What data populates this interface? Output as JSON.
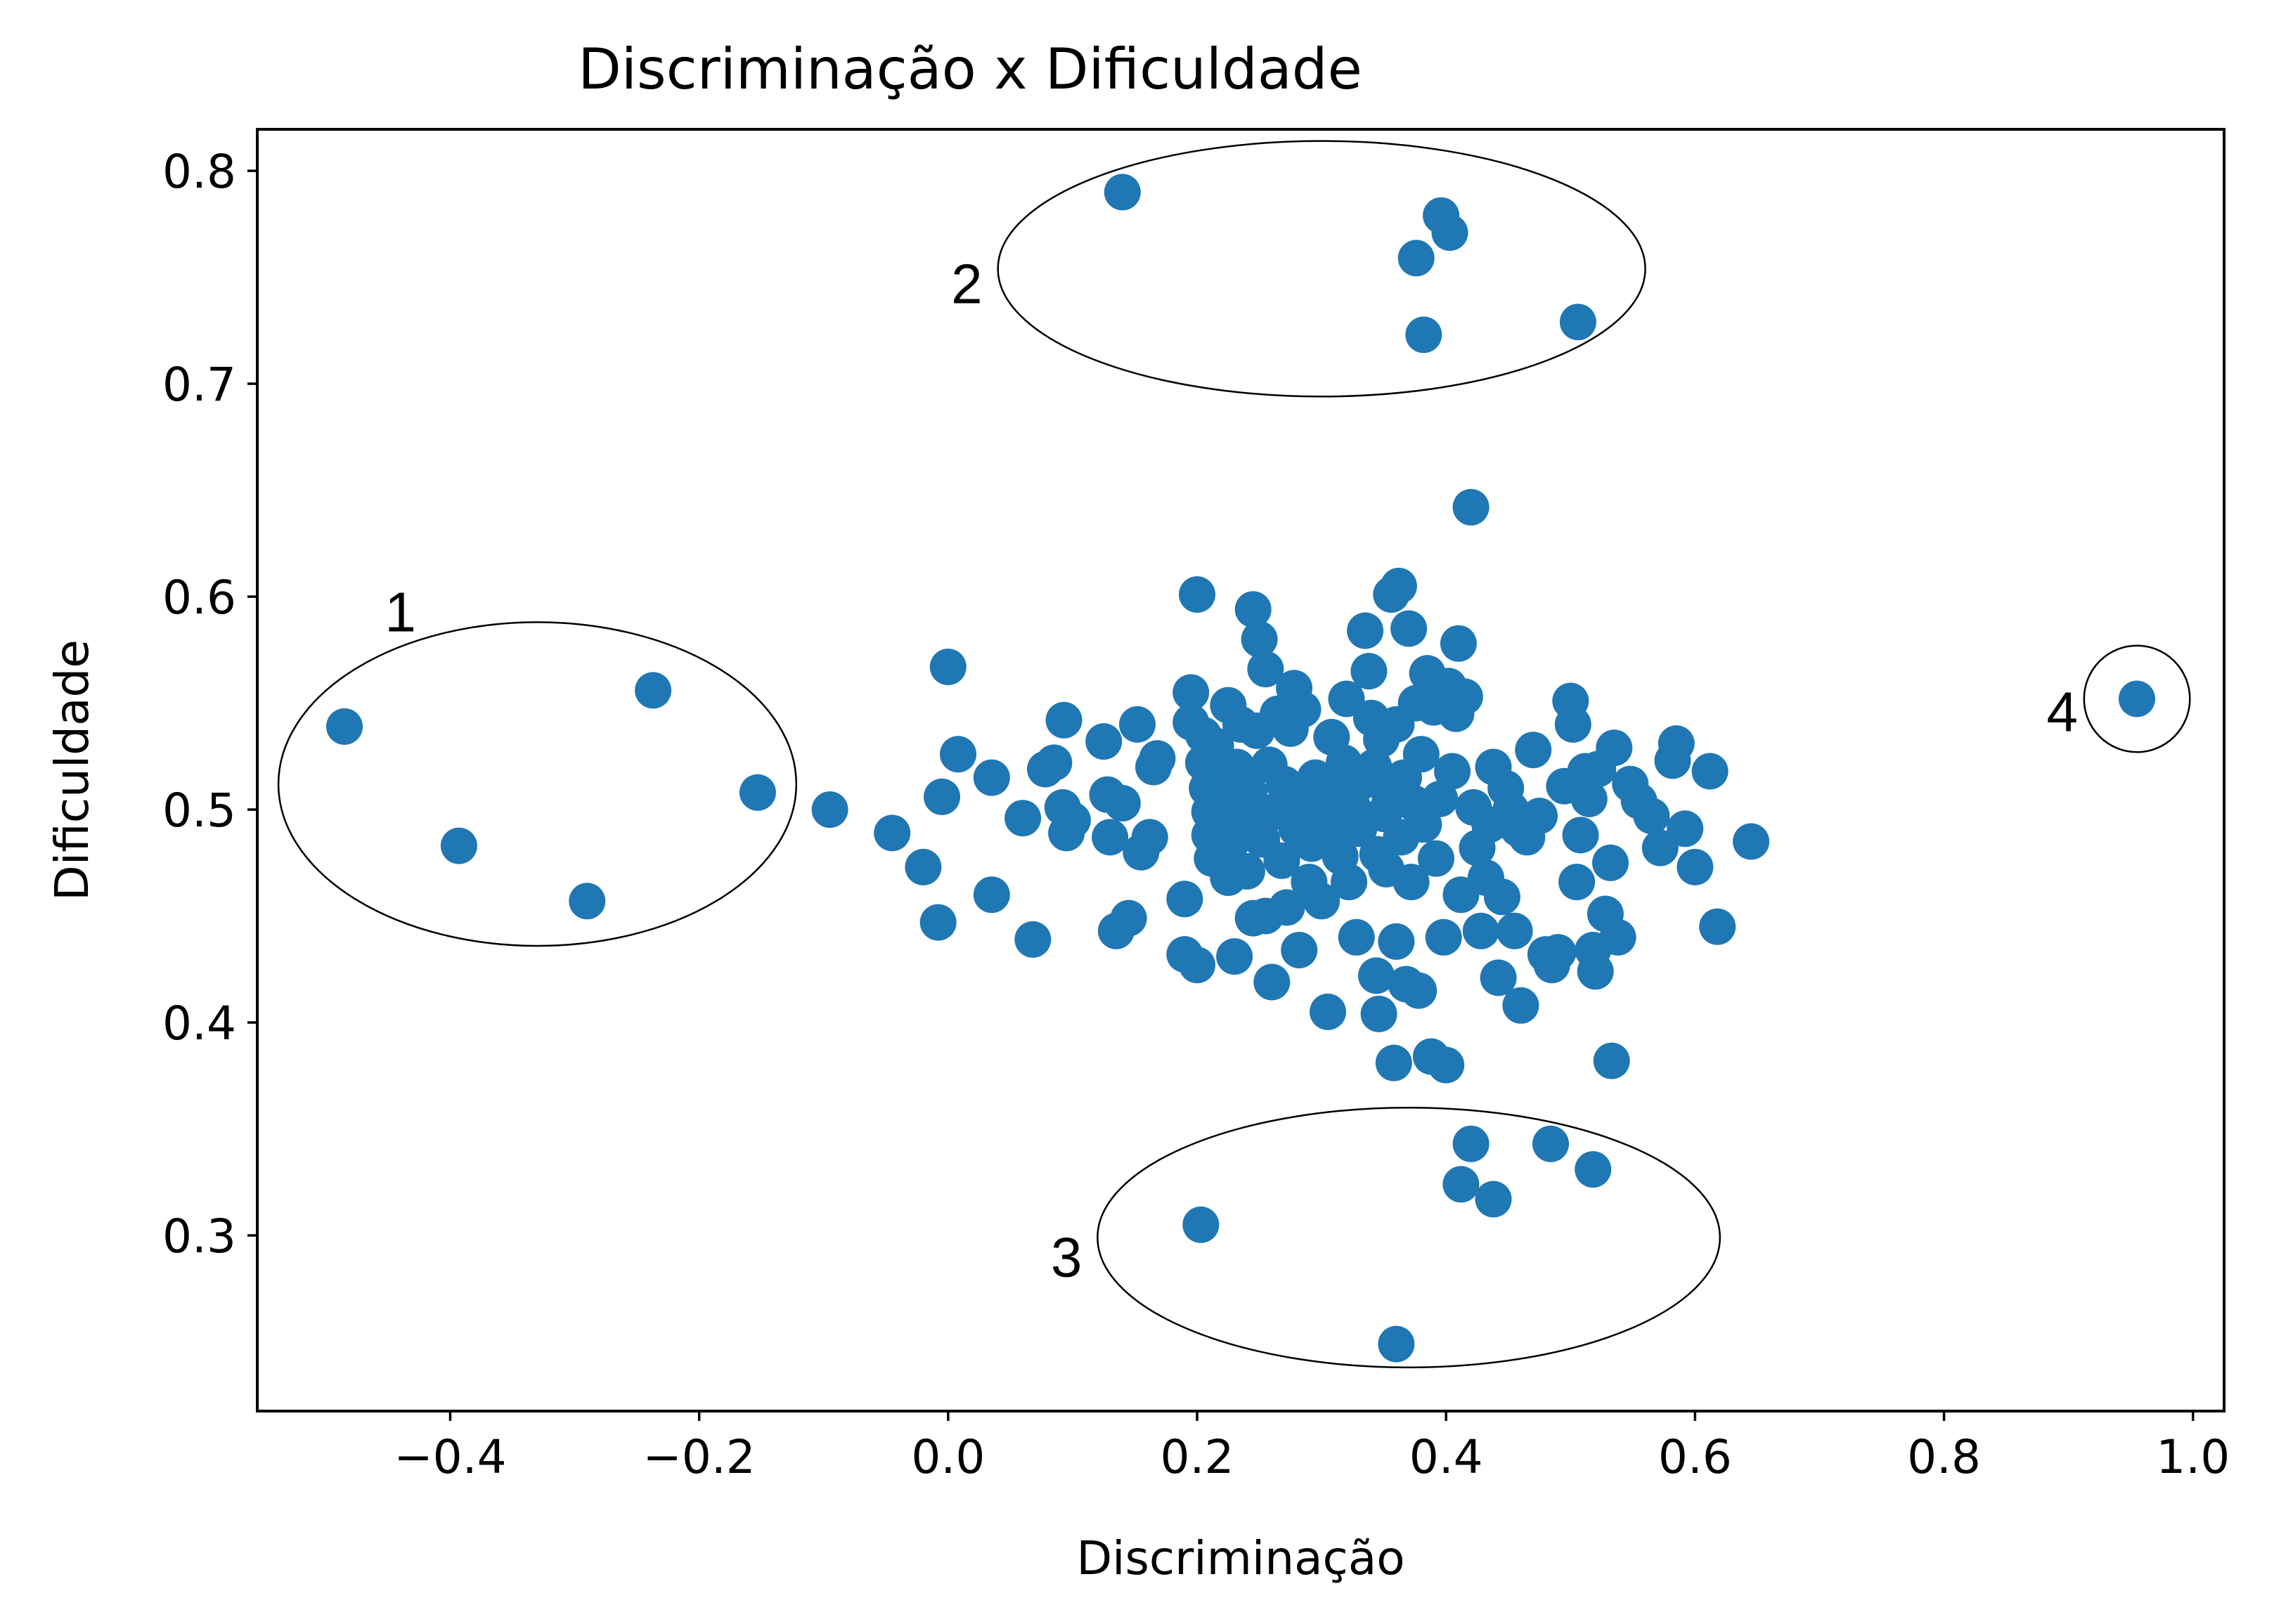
{
  "chart_data": {
    "type": "scatter",
    "title": "Discriminação x Dificuldade",
    "xlabel": "Discriminação",
    "ylabel": "Dificuldade",
    "xlim": [
      -0.555,
      1.025
    ],
    "ylim": [
      0.2175,
      0.8195
    ],
    "x_ticks": [
      -0.4,
      -0.2,
      0.0,
      0.2,
      0.4,
      0.6,
      0.8,
      1.0
    ],
    "x_tick_labels": [
      "−0.4",
      "−0.2",
      "0.0",
      "0.2",
      "0.4",
      "0.6",
      "0.8",
      "1.0"
    ],
    "y_ticks": [
      0.3,
      0.4,
      0.5,
      0.6,
      0.7,
      0.8
    ],
    "y_tick_labels": [
      "0.3",
      "0.4",
      "0.5",
      "0.6",
      "0.7",
      "0.8"
    ],
    "grid": false,
    "marker_color": "#1f77b4",
    "annotations": [
      {
        "label": "1",
        "cx": -0.33,
        "cy": 0.512,
        "rx": 0.208,
        "ry": 0.076,
        "label_x": -0.44,
        "label_y": 0.593
      },
      {
        "label": "2",
        "cx": 0.3,
        "cy": 0.754,
        "rx": 0.26,
        "ry": 0.06,
        "label_x": 0.015,
        "label_y": 0.747
      },
      {
        "label": "3",
        "cx": 0.37,
        "cy": 0.299,
        "rx": 0.25,
        "ry": 0.061,
        "label_x": 0.095,
        "label_y": 0.29
      },
      {
        "label": "4",
        "cx": 0.955,
        "cy": 0.552,
        "rx": 0.0425,
        "ry": 0.025,
        "label_x": 0.895,
        "label_y": 0.546
      }
    ],
    "series": [
      {
        "points": [
          [
            -0.485,
            0.539
          ],
          [
            -0.393,
            0.483
          ],
          [
            -0.29,
            0.457
          ],
          [
            -0.237,
            0.556
          ],
          [
            -0.153,
            0.508
          ],
          [
            -0.095,
            0.5
          ],
          [
            -0.045,
            0.489
          ],
          [
            -0.02,
            0.473
          ],
          [
            -0.008,
            0.447
          ],
          [
            -0.005,
            0.506
          ],
          [
            0.0,
            0.567
          ],
          [
            0.008,
            0.526
          ],
          [
            0.035,
            0.515
          ],
          [
            0.035,
            0.46
          ],
          [
            0.06,
            0.496
          ],
          [
            0.068,
            0.439
          ],
          [
            0.078,
            0.519
          ],
          [
            0.085,
            0.522
          ],
          [
            0.093,
            0.542
          ],
          [
            0.092,
            0.501
          ],
          [
            0.095,
            0.489
          ],
          [
            0.1,
            0.495
          ],
          [
            0.125,
            0.532
          ],
          [
            0.128,
            0.507
          ],
          [
            0.13,
            0.487
          ],
          [
            0.135,
            0.443
          ],
          [
            0.14,
            0.503
          ],
          [
            0.145,
            0.449
          ],
          [
            0.152,
            0.54
          ],
          [
            0.155,
            0.48
          ],
          [
            0.162,
            0.487
          ],
          [
            0.165,
            0.52
          ],
          [
            0.168,
            0.524
          ],
          [
            0.19,
            0.458
          ],
          [
            0.19,
            0.432
          ],
          [
            0.195,
            0.555
          ],
          [
            0.195,
            0.541
          ],
          [
            0.2,
            0.427
          ],
          [
            0.2,
            0.601
          ],
          [
            0.205,
            0.535
          ],
          [
            0.205,
            0.522
          ],
          [
            0.208,
            0.51
          ],
          [
            0.21,
            0.499
          ],
          [
            0.21,
            0.488
          ],
          [
            0.212,
            0.477
          ],
          [
            0.215,
            0.53
          ],
          [
            0.218,
            0.494
          ],
          [
            0.22,
            0.512
          ],
          [
            0.222,
            0.503
          ],
          [
            0.225,
            0.549
          ],
          [
            0.225,
            0.468
          ],
          [
            0.228,
            0.485
          ],
          [
            0.23,
            0.431
          ],
          [
            0.232,
            0.52
          ],
          [
            0.235,
            0.54
          ],
          [
            0.238,
            0.495
          ],
          [
            0.24,
            0.471
          ],
          [
            0.242,
            0.508
          ],
          [
            0.245,
            0.449
          ],
          [
            0.245,
            0.594
          ],
          [
            0.248,
            0.537
          ],
          [
            0.25,
            0.58
          ],
          [
            0.252,
            0.486
          ],
          [
            0.255,
            0.566
          ],
          [
            0.255,
            0.45
          ],
          [
            0.258,
            0.521
          ],
          [
            0.26,
            0.419
          ],
          [
            0.262,
            0.499
          ],
          [
            0.265,
            0.545
          ],
          [
            0.268,
            0.476
          ],
          [
            0.27,
            0.512
          ],
          [
            0.272,
            0.454
          ],
          [
            0.275,
            0.538
          ],
          [
            0.278,
            0.557
          ],
          [
            0.28,
            0.491
          ],
          [
            0.282,
            0.434
          ],
          [
            0.285,
            0.547
          ],
          [
            0.288,
            0.502
          ],
          [
            0.29,
            0.466
          ],
          [
            0.292,
            0.484
          ],
          [
            0.295,
            0.515
          ],
          [
            0.298,
            0.497
          ],
          [
            0.3,
            0.457
          ],
          [
            0.305,
            0.405
          ],
          [
            0.308,
            0.534
          ],
          [
            0.31,
            0.509
          ],
          [
            0.312,
            0.489
          ],
          [
            0.315,
            0.478
          ],
          [
            0.318,
            0.522
          ],
          [
            0.32,
            0.552
          ],
          [
            0.322,
            0.466
          ],
          [
            0.325,
            0.501
          ],
          [
            0.328,
            0.44
          ],
          [
            0.33,
            0.491
          ],
          [
            0.332,
            0.513
          ],
          [
            0.335,
            0.584
          ],
          [
            0.338,
            0.565
          ],
          [
            0.34,
            0.543
          ],
          [
            0.342,
            0.52
          ],
          [
            0.344,
            0.422
          ],
          [
            0.345,
            0.479
          ],
          [
            0.346,
            0.404
          ],
          [
            0.348,
            0.533
          ],
          [
            0.35,
            0.498
          ],
          [
            0.352,
            0.472
          ],
          [
            0.355,
            0.505
          ],
          [
            0.356,
            0.601
          ],
          [
            0.358,
            0.381
          ],
          [
            0.36,
            0.54
          ],
          [
            0.36,
            0.438
          ],
          [
            0.362,
            0.605
          ],
          [
            0.364,
            0.487
          ],
          [
            0.366,
            0.515
          ],
          [
            0.368,
            0.418
          ],
          [
            0.37,
            0.585
          ],
          [
            0.372,
            0.466
          ],
          [
            0.374,
            0.503
          ],
          [
            0.376,
            0.55
          ],
          [
            0.378,
            0.415
          ],
          [
            0.38,
            0.526
          ],
          [
            0.382,
            0.493
          ],
          [
            0.385,
            0.564
          ],
          [
            0.388,
            0.384
          ],
          [
            0.39,
            0.548
          ],
          [
            0.392,
            0.477
          ],
          [
            0.395,
            0.505
          ],
          [
            0.398,
            0.44
          ],
          [
            0.4,
            0.38
          ],
          [
            0.402,
            0.558
          ],
          [
            0.405,
            0.518
          ],
          [
            0.408,
            0.545
          ],
          [
            0.41,
            0.578
          ],
          [
            0.412,
            0.46
          ],
          [
            0.415,
            0.553
          ],
          [
            0.42,
            0.642
          ],
          [
            0.422,
            0.501
          ],
          [
            0.425,
            0.482
          ],
          [
            0.428,
            0.443
          ],
          [
            0.432,
            0.468
          ],
          [
            0.435,
            0.493
          ],
          [
            0.438,
            0.52
          ],
          [
            0.442,
            0.421
          ],
          [
            0.445,
            0.459
          ],
          [
            0.448,
            0.51
          ],
          [
            0.452,
            0.5
          ],
          [
            0.455,
            0.443
          ],
          [
            0.458,
            0.491
          ],
          [
            0.46,
            0.408
          ],
          [
            0.465,
            0.487
          ],
          [
            0.47,
            0.528
          ],
          [
            0.475,
            0.497
          ],
          [
            0.48,
            0.432
          ],
          [
            0.485,
            0.427
          ],
          [
            0.49,
            0.433
          ],
          [
            0.495,
            0.511
          ],
          [
            0.5,
            0.551
          ],
          [
            0.502,
            0.54
          ],
          [
            0.505,
            0.466
          ],
          [
            0.508,
            0.488
          ],
          [
            0.512,
            0.518
          ],
          [
            0.515,
            0.505
          ],
          [
            0.518,
            0.434
          ],
          [
            0.52,
            0.424
          ],
          [
            0.522,
            0.519
          ],
          [
            0.528,
            0.451
          ],
          [
            0.532,
            0.475
          ],
          [
            0.535,
            0.529
          ],
          [
            0.538,
            0.44
          ],
          [
            0.548,
            0.512
          ],
          [
            0.555,
            0.504
          ],
          [
            0.565,
            0.497
          ],
          [
            0.572,
            0.482
          ],
          [
            0.582,
            0.523
          ],
          [
            0.585,
            0.531
          ],
          [
            0.592,
            0.491
          ],
          [
            0.6,
            0.473
          ],
          [
            0.612,
            0.518
          ],
          [
            0.618,
            0.445
          ],
          [
            0.645,
            0.485
          ],
          [
            0.14,
            0.79
          ],
          [
            0.376,
            0.759
          ],
          [
            0.382,
            0.723
          ],
          [
            0.396,
            0.779
          ],
          [
            0.403,
            0.771
          ],
          [
            0.506,
            0.729
          ],
          [
            0.203,
            0.305
          ],
          [
            0.36,
            0.249
          ],
          [
            0.412,
            0.324
          ],
          [
            0.42,
            0.343
          ],
          [
            0.438,
            0.317
          ],
          [
            0.484,
            0.343
          ],
          [
            0.518,
            0.331
          ],
          [
            0.533,
            0.382
          ],
          [
            0.955,
            0.552
          ]
        ]
      }
    ]
  }
}
